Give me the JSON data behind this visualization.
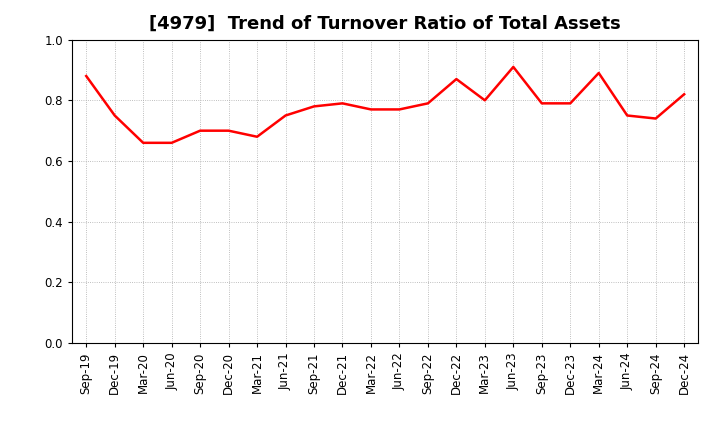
{
  "title": "[4979]  Trend of Turnover Ratio of Total Assets",
  "x_labels": [
    "Sep-19",
    "Dec-19",
    "Mar-20",
    "Jun-20",
    "Sep-20",
    "Dec-20",
    "Mar-21",
    "Jun-21",
    "Sep-21",
    "Dec-21",
    "Mar-22",
    "Jun-22",
    "Sep-22",
    "Dec-22",
    "Mar-23",
    "Jun-23",
    "Sep-23",
    "Dec-23",
    "Mar-24",
    "Jun-24",
    "Sep-24",
    "Dec-24"
  ],
  "values": [
    0.88,
    0.75,
    0.66,
    0.66,
    0.7,
    0.7,
    0.68,
    0.75,
    0.78,
    0.79,
    0.77,
    0.77,
    0.79,
    0.87,
    0.8,
    0.91,
    0.79,
    0.79,
    0.89,
    0.75,
    0.74,
    0.82
  ],
  "line_color": "#FF0000",
  "line_width": 1.8,
  "ylim": [
    0.0,
    1.0
  ],
  "yticks": [
    0.0,
    0.2,
    0.4,
    0.6,
    0.8,
    1.0
  ],
  "background_color": "#ffffff",
  "grid_color": "#aaaaaa",
  "title_fontsize": 13,
  "tick_fontsize": 8.5
}
